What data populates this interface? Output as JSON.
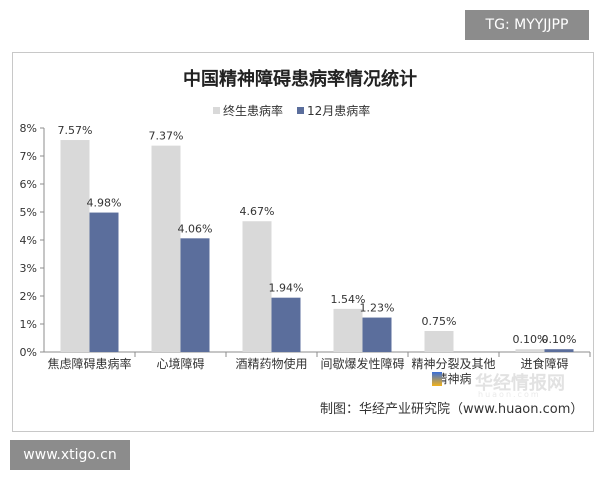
{
  "badges": {
    "tg": "TG: MYYJJPP",
    "site": "www.xtigo.cn"
  },
  "credit": "制图：华经产业研究院（www.huaon.com）",
  "watermark": {
    "text": "华经情报网",
    "sub": "huaon.com"
  },
  "colors": {
    "lifetime": "#d9d9d9",
    "monthly": "#5b6e9c",
    "axis": "#8c8c8c"
  },
  "chart_data": {
    "type": "bar",
    "title": "中国精神障碍患病率情况统计",
    "categories": [
      "焦虑障碍患病率",
      "心境障碍",
      "酒精药物使用",
      "间歇爆发性障碍",
      "精神分裂及其他精神病",
      "进食障碍"
    ],
    "series": [
      {
        "name": "终生患病率",
        "values": [
          7.57,
          7.37,
          4.67,
          1.54,
          0.75,
          0.1
        ],
        "labels": [
          "7.57%",
          "7.37%",
          "4.67%",
          "1.54%",
          "0.75%",
          "0.10%"
        ]
      },
      {
        "name": "12月患病率",
        "values": [
          4.98,
          4.06,
          1.94,
          1.23,
          0.0,
          0.1
        ],
        "labels": [
          "4.98%",
          "4.06%",
          "1.94%",
          "1.23%",
          "",
          "0.10%"
        ]
      }
    ],
    "yticks": [
      "0%",
      "1%",
      "2%",
      "3%",
      "4%",
      "5%",
      "6%",
      "7%",
      "8%"
    ],
    "ylim": [
      0,
      8
    ],
    "legend_position": "top",
    "grid": false
  }
}
